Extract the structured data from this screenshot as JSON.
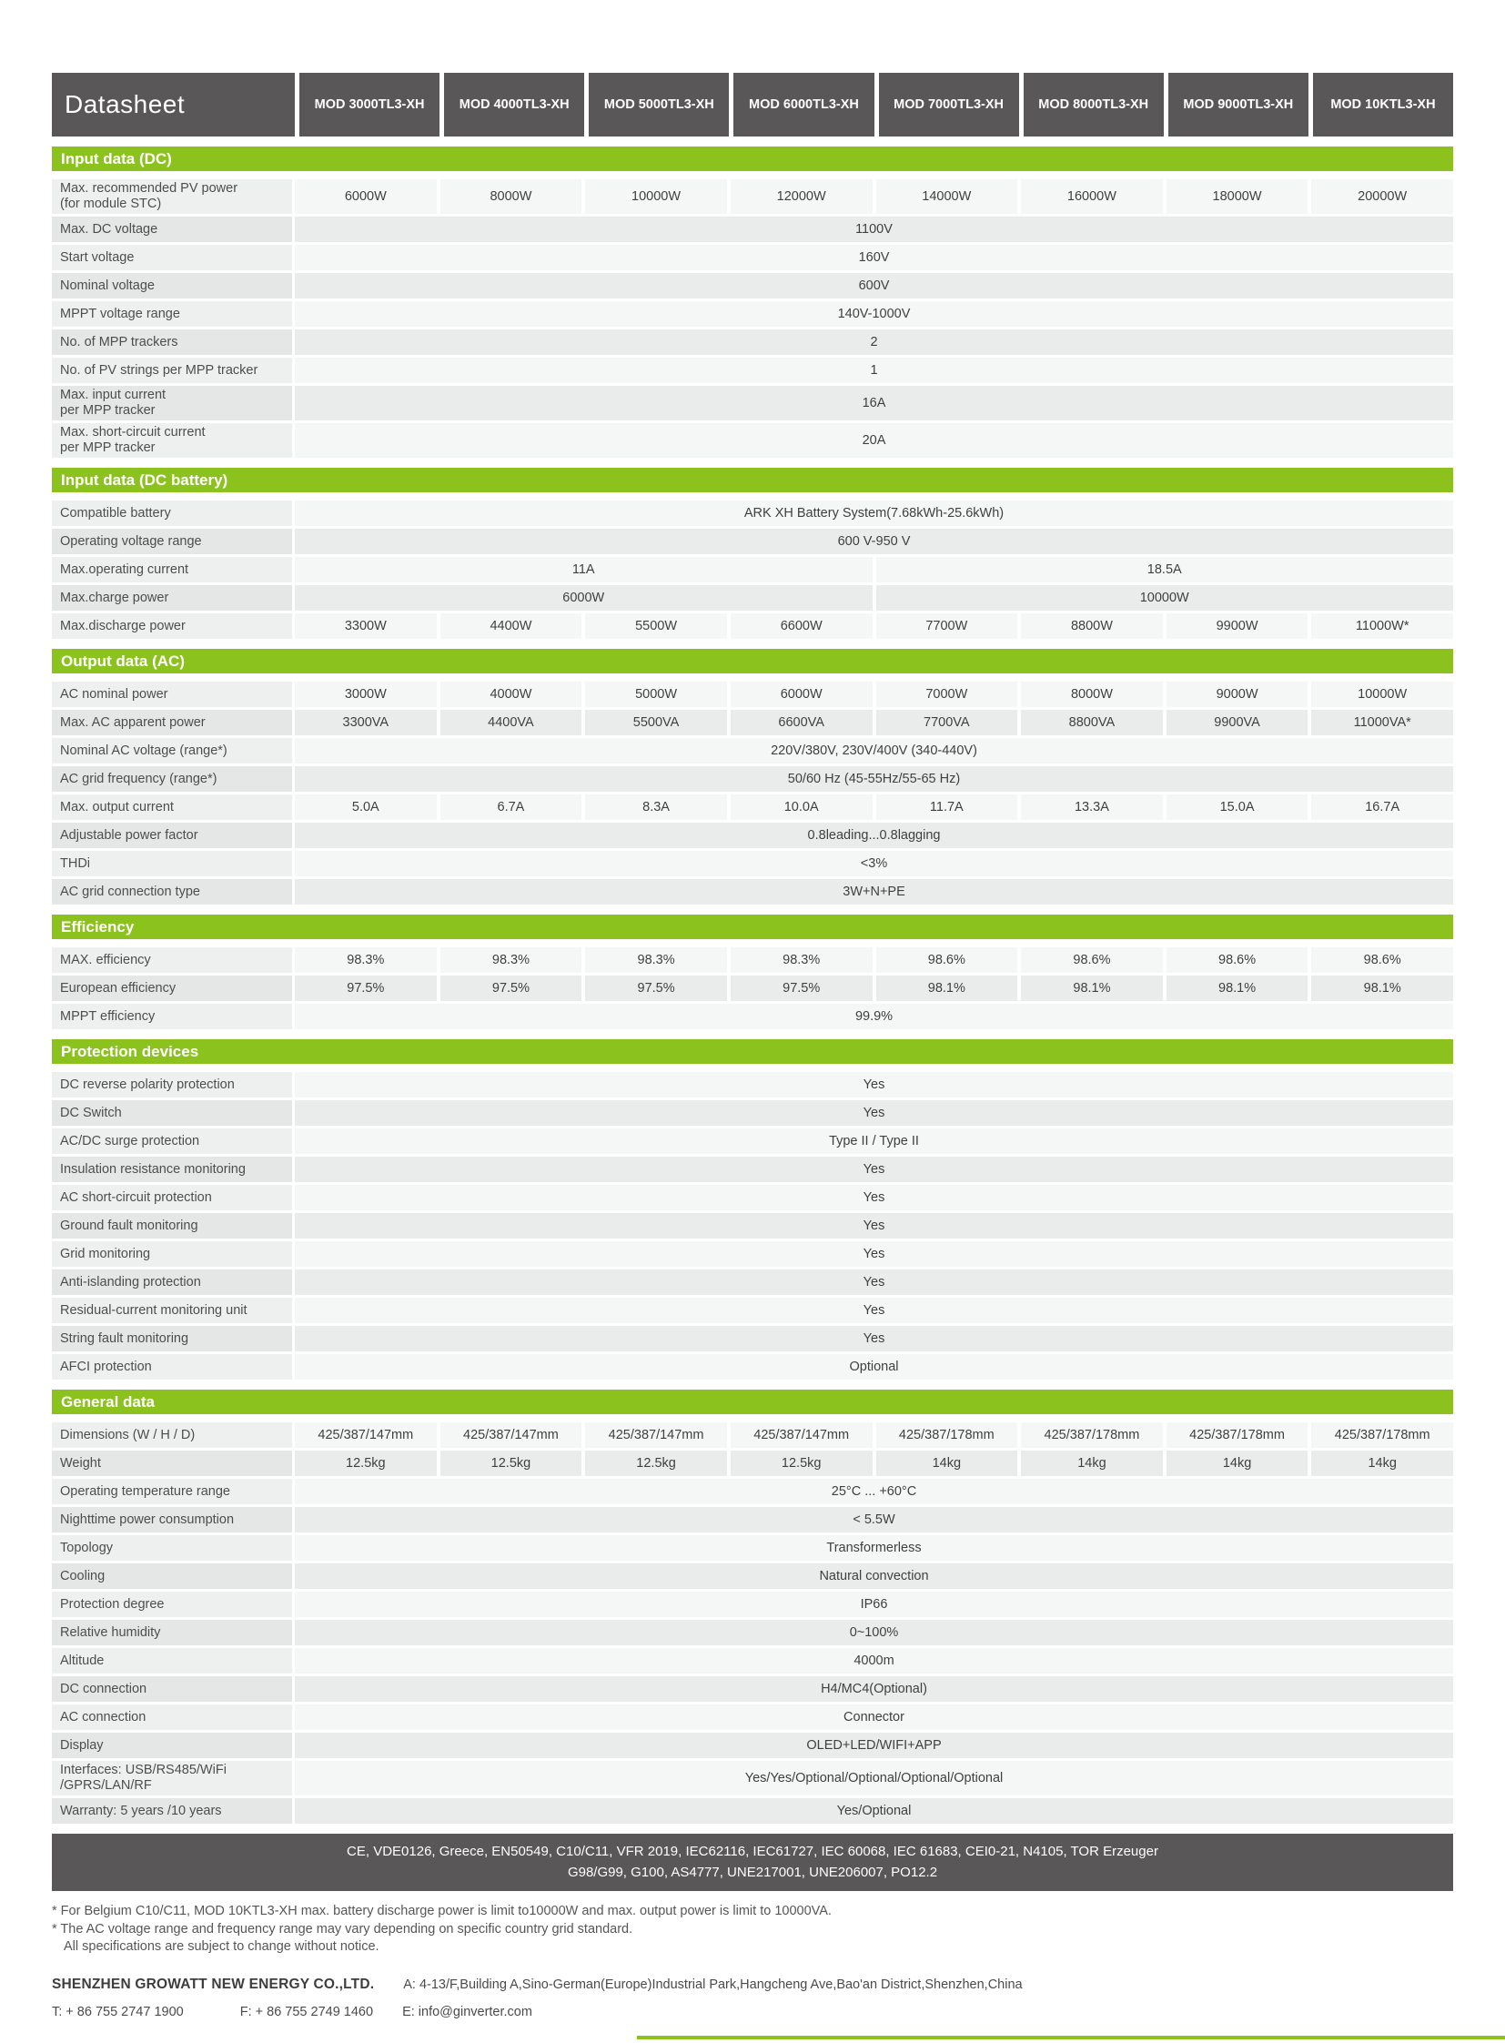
{
  "brand": {
    "title": "Datasheet"
  },
  "models": [
    "MOD 3000TL3-XH",
    "MOD 4000TL3-XH",
    "MOD 5000TL3-XH",
    "MOD 6000TL3-XH",
    "MOD 7000TL3-XH",
    "MOD 8000TL3-XH",
    "MOD 9000TL3-XH",
    "MOD 10KTL3-XH"
  ],
  "colors": {
    "green": "#8CC21D",
    "dark_gray": "#595757"
  },
  "sections": [
    {
      "title": "Input data (DC)",
      "rows": [
        {
          "label": "Max. recommended PV power\n(for module STC)",
          "values": [
            "6000W",
            "8000W",
            "10000W",
            "12000W",
            "14000W",
            "16000W",
            "18000W",
            "20000W"
          ]
        },
        {
          "label": "Max. DC voltage",
          "value": "1100V"
        },
        {
          "label": "Start voltage",
          "value": "160V"
        },
        {
          "label": "Nominal voltage",
          "value": "600V"
        },
        {
          "label": "MPPT voltage range",
          "value": "140V-1000V"
        },
        {
          "label": "No. of MPP trackers",
          "value": "2"
        },
        {
          "label": "No. of PV strings per MPP tracker",
          "value": "1"
        },
        {
          "label": "Max. input current\nper MPP tracker",
          "value": "16A"
        },
        {
          "label": "Max. short-circuit current\nper MPP tracker",
          "value": "20A"
        }
      ]
    },
    {
      "title": "Input data (DC battery)",
      "rows": [
        {
          "label": "Compatible battery",
          "value": "ARK XH Battery System(7.68kWh-25.6kWh)"
        },
        {
          "label": "Operating voltage range",
          "value": "600 V-950 V"
        },
        {
          "label": "Max.operating current",
          "values": [
            "11A",
            "18.5A"
          ]
        },
        {
          "label": "Max.charge power",
          "values": [
            "6000W",
            "10000W"
          ]
        },
        {
          "label": "Max.discharge power",
          "values": [
            "3300W",
            "4400W",
            "5500W",
            "6600W",
            "7700W",
            "8800W",
            "9900W",
            "11000W*"
          ]
        }
      ]
    },
    {
      "title": "Output data (AC)",
      "rows": [
        {
          "label": "AC nominal power",
          "values": [
            "3000W",
            "4000W",
            "5000W",
            "6000W",
            "7000W",
            "8000W",
            "9000W",
            "10000W"
          ]
        },
        {
          "label": "Max. AC apparent power",
          "values": [
            "3300VA",
            "4400VA",
            "5500VA",
            "6600VA",
            "7700VA",
            "8800VA",
            "9900VA",
            "11000VA*"
          ]
        },
        {
          "label": "Nominal AC voltage (range*)",
          "value": "220V/380V, 230V/400V  (340-440V)"
        },
        {
          "label": "AC grid frequency (range*)",
          "value": "50/60 Hz (45-55Hz/55-65 Hz)"
        },
        {
          "label": "Max. output current",
          "values": [
            "5.0A",
            "6.7A",
            "8.3A",
            "10.0A",
            "11.7A",
            "13.3A",
            "15.0A",
            "16.7A"
          ]
        },
        {
          "label": "Adjustable power factor",
          "value": "0.8leading...0.8lagging"
        },
        {
          "label": "THDi",
          "value": "<3%"
        },
        {
          "label": "AC grid connection type",
          "value": "3W+N+PE"
        }
      ]
    },
    {
      "title": "Efficiency",
      "rows": [
        {
          "label": "MAX. efficiency",
          "values": [
            "98.3%",
            "98.3%",
            "98.3%",
            "98.3%",
            "98.6%",
            "98.6%",
            "98.6%",
            "98.6%"
          ]
        },
        {
          "label": "European efficiency",
          "values": [
            "97.5%",
            "97.5%",
            "97.5%",
            "97.5%",
            "98.1%",
            "98.1%",
            "98.1%",
            "98.1%"
          ]
        },
        {
          "label": "MPPT efficiency",
          "value": "99.9%"
        }
      ]
    },
    {
      "title": "Protection devices",
      "rows": [
        {
          "label": "DC reverse polarity protection",
          "value": "Yes"
        },
        {
          "label": "DC Switch",
          "value": "Yes"
        },
        {
          "label": "AC/DC surge protection",
          "value": "Type II / Type II"
        },
        {
          "label": "Insulation resistance monitoring",
          "value": "Yes"
        },
        {
          "label": "AC short-circuit protection",
          "value": "Yes"
        },
        {
          "label": "Ground fault monitoring",
          "value": "Yes"
        },
        {
          "label": "Grid monitoring",
          "value": "Yes"
        },
        {
          "label": "Anti-islanding protection",
          "value": "Yes"
        },
        {
          "label": "Residual-current monitoring unit",
          "value": "Yes"
        },
        {
          "label": "String fault monitoring",
          "value": "Yes"
        },
        {
          "label": "AFCI protection",
          "value": "Optional"
        }
      ]
    },
    {
      "title": "General data",
      "rows": [
        {
          "label": "Dimensions (W / H / D)",
          "values": [
            "425/387/147mm",
            "425/387/147mm",
            "425/387/147mm",
            "425/387/147mm",
            "425/387/178mm",
            "425/387/178mm",
            "425/387/178mm",
            "425/387/178mm"
          ]
        },
        {
          "label": "Weight",
          "values": [
            "12.5kg",
            "12.5kg",
            "12.5kg",
            "12.5kg",
            "14kg",
            "14kg",
            "14kg",
            "14kg"
          ]
        },
        {
          "label": "Operating temperature range",
          "value": "25°C ... +60°C"
        },
        {
          "label": "Nighttime power consumption",
          "value": "< 5.5W"
        },
        {
          "label": "Topology",
          "value": "Transformerless"
        },
        {
          "label": "Cooling",
          "value": "Natural convection"
        },
        {
          "label": "Protection degree",
          "value": "IP66"
        },
        {
          "label": "Relative humidity",
          "value": "0~100%"
        },
        {
          "label": "Altitude",
          "value": "4000m"
        },
        {
          "label": "DC connection",
          "value": "H4/MC4(Optional)"
        },
        {
          "label": "AC connection",
          "value": "Connector"
        },
        {
          "label": "Display",
          "value": "OLED+LED/WIFI+APP"
        },
        {
          "label": "Interfaces: USB/RS485/WiFi\n/GPRS/LAN/RF",
          "value": "Yes/Yes/Optional/Optional/Optional/Optional"
        },
        {
          "label": "Warranty: 5 years /10 years",
          "value": "Yes/Optional"
        }
      ]
    }
  ],
  "certifications": {
    "line1": "CE, VDE0126, Greece, EN50549, C10/C11, VFR 2019,  IEC62116, IEC61727, IEC 60068, IEC 61683, CEI0-21, N4105, TOR Erzeuger",
    "line2": "G98/G99, G100, AS4777, UNE217001, UNE206007, PO12.2"
  },
  "footnotes": [
    "* For Belgium C10/C11, MOD 10KTL3-XH max. battery discharge power is limit to10000W and max. output power is limit to 10000VA.",
    "* The AC voltage range and frequency range may vary depending on specific country grid standard.",
    "All specifications are subject to change without notice."
  ],
  "footer": {
    "company": "SHENZHEN GROWATT NEW ENERGY CO.,LTD.",
    "address": "A: 4-13/F,Building A,Sino-German(Europe)Industrial Park,Hangcheng Ave,Bao'an District,Shenzhen,China",
    "tel": "T:  + 86 755 2747 1900",
    "fax": "F:  + 86 755 2749 1460",
    "email": "E:  info@ginverter.com"
  }
}
